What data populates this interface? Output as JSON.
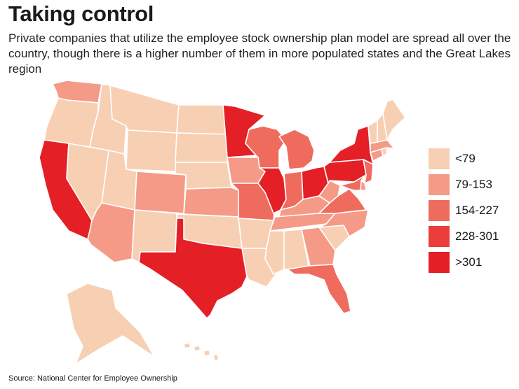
{
  "header": {
    "title": "Taking control",
    "subtitle": "Private companies that utilize the employee stock ownership plan model are spread all over the country, though there is a higher number of them in more populated states and the Great Lakes region"
  },
  "legend": [
    {
      "label": "<79",
      "color": "#f7cfb3"
    },
    {
      "label": "79-153",
      "color": "#f49a86"
    },
    {
      "label": "154-227",
      "color": "#ef6b5e"
    },
    {
      "label": "228-301",
      "color": "#ea3d3c"
    },
    {
      "label": ">301",
      "color": "#e41f26"
    }
  ],
  "states": {
    "WA": 1,
    "OR": 0,
    "CA": 4,
    "NV": 0,
    "ID": 0,
    "MT": 0,
    "WY": 0,
    "UT": 0,
    "AZ": 1,
    "CO": 1,
    "NM": 0,
    "ND": 0,
    "SD": 0,
    "NE": 0,
    "KS": 1,
    "OK": 0,
    "TX": 4,
    "MN": 4,
    "IA": 1,
    "MO": 2,
    "AR": 0,
    "LA": 0,
    "WI": 2,
    "IL": 4,
    "MI": 2,
    "IN": 2,
    "OH": 4,
    "KY": 1,
    "TN": 1,
    "MS": 0,
    "AL": 0,
    "GA": 1,
    "FL": 2,
    "SC": 0,
    "NC": 1,
    "VA": 2,
    "WV": 1,
    "PA": 4,
    "NY": 4,
    "NJ": 2,
    "DE": 1,
    "MD": 2,
    "CT": 1,
    "RI": 0,
    "MA": 1,
    "VT": 0,
    "NH": 0,
    "ME": 0,
    "AK": 0,
    "HI": 0
  },
  "source": "Source: National Center for Employee Ownership"
}
